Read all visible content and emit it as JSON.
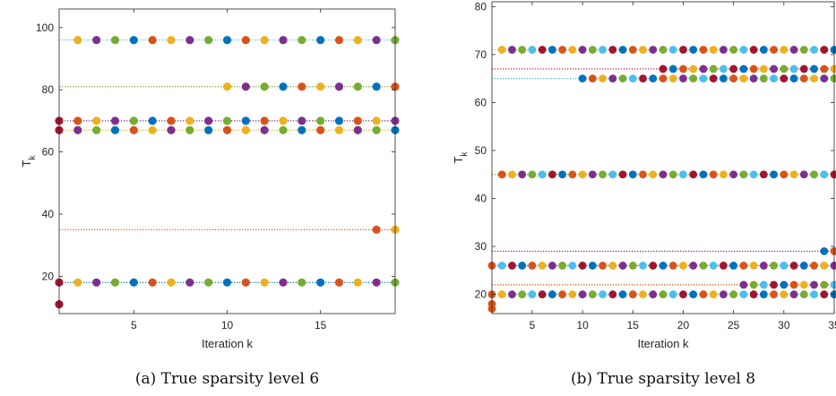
{
  "palette": [
    "#0072BD",
    "#D95319",
    "#EDB120",
    "#7E2F8E",
    "#77AC30",
    "#4DBEEE",
    "#A2142F"
  ],
  "chart_data": [
    {
      "type": "scatter",
      "caption": "(a) True sparsity level 6",
      "xlabel": "Iteration k",
      "ylabel": "T_k",
      "ylabel_main": "T",
      "ylabel_sub": "k",
      "xlim": [
        1,
        19
      ],
      "ylim": [
        8,
        106
      ],
      "xticks": [
        5,
        10,
        15
      ],
      "yticks": [
        20,
        40,
        60,
        80,
        100
      ],
      "grid": false,
      "lines": [
        {
          "y": 96,
          "color": "#4DBEEE"
        },
        {
          "y": 81,
          "color": "#77AC30"
        },
        {
          "y": 70,
          "color": "#7E2F8E"
        },
        {
          "y": 67,
          "color": "#EDB120"
        },
        {
          "y": 35,
          "color": "#D95319"
        },
        {
          "y": 18,
          "color": "#0072BD"
        }
      ],
      "start_points": [
        {
          "x": 1,
          "y": 70,
          "color": "#A2142F"
        },
        {
          "x": 1,
          "y": 67,
          "color": "#A2142F"
        },
        {
          "x": 1,
          "y": 18,
          "color": "#A2142F"
        },
        {
          "x": 1,
          "y": 11,
          "color": "#A2142F"
        }
      ],
      "point_rows": [
        {
          "y": 96,
          "x_start": 2,
          "x_end": 19
        },
        {
          "y": 81,
          "x_start": 10,
          "x_end": 19
        },
        {
          "y": 70,
          "x_start": 2,
          "x_end": 19
        },
        {
          "y": 67,
          "x_start": 2,
          "x_end": 19
        },
        {
          "y": 35,
          "x_start": 18,
          "x_end": 19
        },
        {
          "y": 18,
          "x_start": 2,
          "x_end": 19
        }
      ]
    },
    {
      "type": "scatter",
      "caption": "(b) True sparsity level 8",
      "xlabel": "Iteration k",
      "ylabel": "T_k",
      "ylabel_main": "T",
      "ylabel_sub": "k",
      "xlim": [
        1,
        35
      ],
      "ylim": [
        16,
        81
      ],
      "xticks": [
        5,
        10,
        15,
        20,
        25,
        30,
        35
      ],
      "yticks": [
        20,
        30,
        40,
        50,
        60,
        70,
        80
      ],
      "grid": false,
      "lines": [
        {
          "y": 71,
          "color": "#EDB120"
        },
        {
          "y": 67,
          "color": "#A2142F"
        },
        {
          "y": 65,
          "color": "#4DBEEE"
        },
        {
          "y": 45,
          "color": "#77AC30"
        },
        {
          "y": 29,
          "color": "#7E2F8E"
        },
        {
          "y": 26,
          "color": "#0072BD"
        },
        {
          "y": 22,
          "color": "#D95319"
        },
        {
          "y": 20,
          "color": "#4DBEEE"
        }
      ],
      "start_points": [
        {
          "x": 1,
          "y": 26,
          "color": "#D95319"
        },
        {
          "x": 1,
          "y": 20,
          "color": "#D95319"
        },
        {
          "x": 1,
          "y": 18,
          "color": "#D95319"
        },
        {
          "x": 1,
          "y": 17,
          "color": "#D95319"
        }
      ],
      "point_rows": [
        {
          "y": 71,
          "x_start": 2,
          "x_end": 35
        },
        {
          "y": 67,
          "x_start": 18,
          "x_end": 35
        },
        {
          "y": 65,
          "x_start": 10,
          "x_end": 35
        },
        {
          "y": 45,
          "x_start": 2,
          "x_end": 35
        },
        {
          "y": 29,
          "x_start": 34,
          "x_end": 35
        },
        {
          "y": 26,
          "x_start": 2,
          "x_end": 35
        },
        {
          "y": 22,
          "x_start": 26,
          "x_end": 35
        },
        {
          "y": 20,
          "x_start": 2,
          "x_end": 35
        }
      ]
    }
  ]
}
